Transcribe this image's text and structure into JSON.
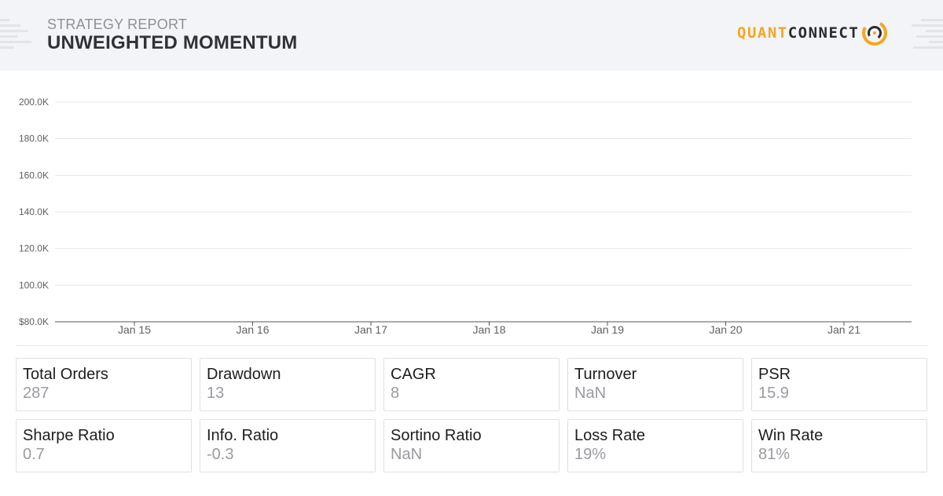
{
  "header": {
    "subtitle": "STRATEGY REPORT",
    "title": "UNWEIGHTED MOMENTUM",
    "logo": {
      "part1": "QUANT",
      "part2": "CONNECT",
      "accent_color": "#f5a623"
    }
  },
  "chart_data": {
    "type": "line",
    "title": "",
    "xlabel": "",
    "ylabel": "",
    "y_ticks": [
      "$80.0K",
      "100.0K",
      "120.0K",
      "140.0K",
      "160.0K",
      "180.0K",
      "200.0K"
    ],
    "x_ticks": [
      "Jan 15",
      "Jan 16",
      "Jan 17",
      "Jan 18",
      "Jan 19",
      "Jan 20",
      "Jan 21"
    ],
    "ylim": [
      80000,
      200000
    ],
    "grid": true,
    "series": []
  },
  "metrics": [
    {
      "label": "Total Orders",
      "value": "287"
    },
    {
      "label": "Drawdown",
      "value": "13"
    },
    {
      "label": "CAGR",
      "value": "8"
    },
    {
      "label": "Turnover",
      "value": "NaN"
    },
    {
      "label": "PSR",
      "value": "15.9"
    },
    {
      "label": "Sharpe Ratio",
      "value": "0.7"
    },
    {
      "label": "Info. Ratio",
      "value": "-0.3"
    },
    {
      "label": "Sortino Ratio",
      "value": "NaN"
    },
    {
      "label": "Loss Rate",
      "value": "19%"
    },
    {
      "label": "Win Rate",
      "value": "81%"
    }
  ]
}
